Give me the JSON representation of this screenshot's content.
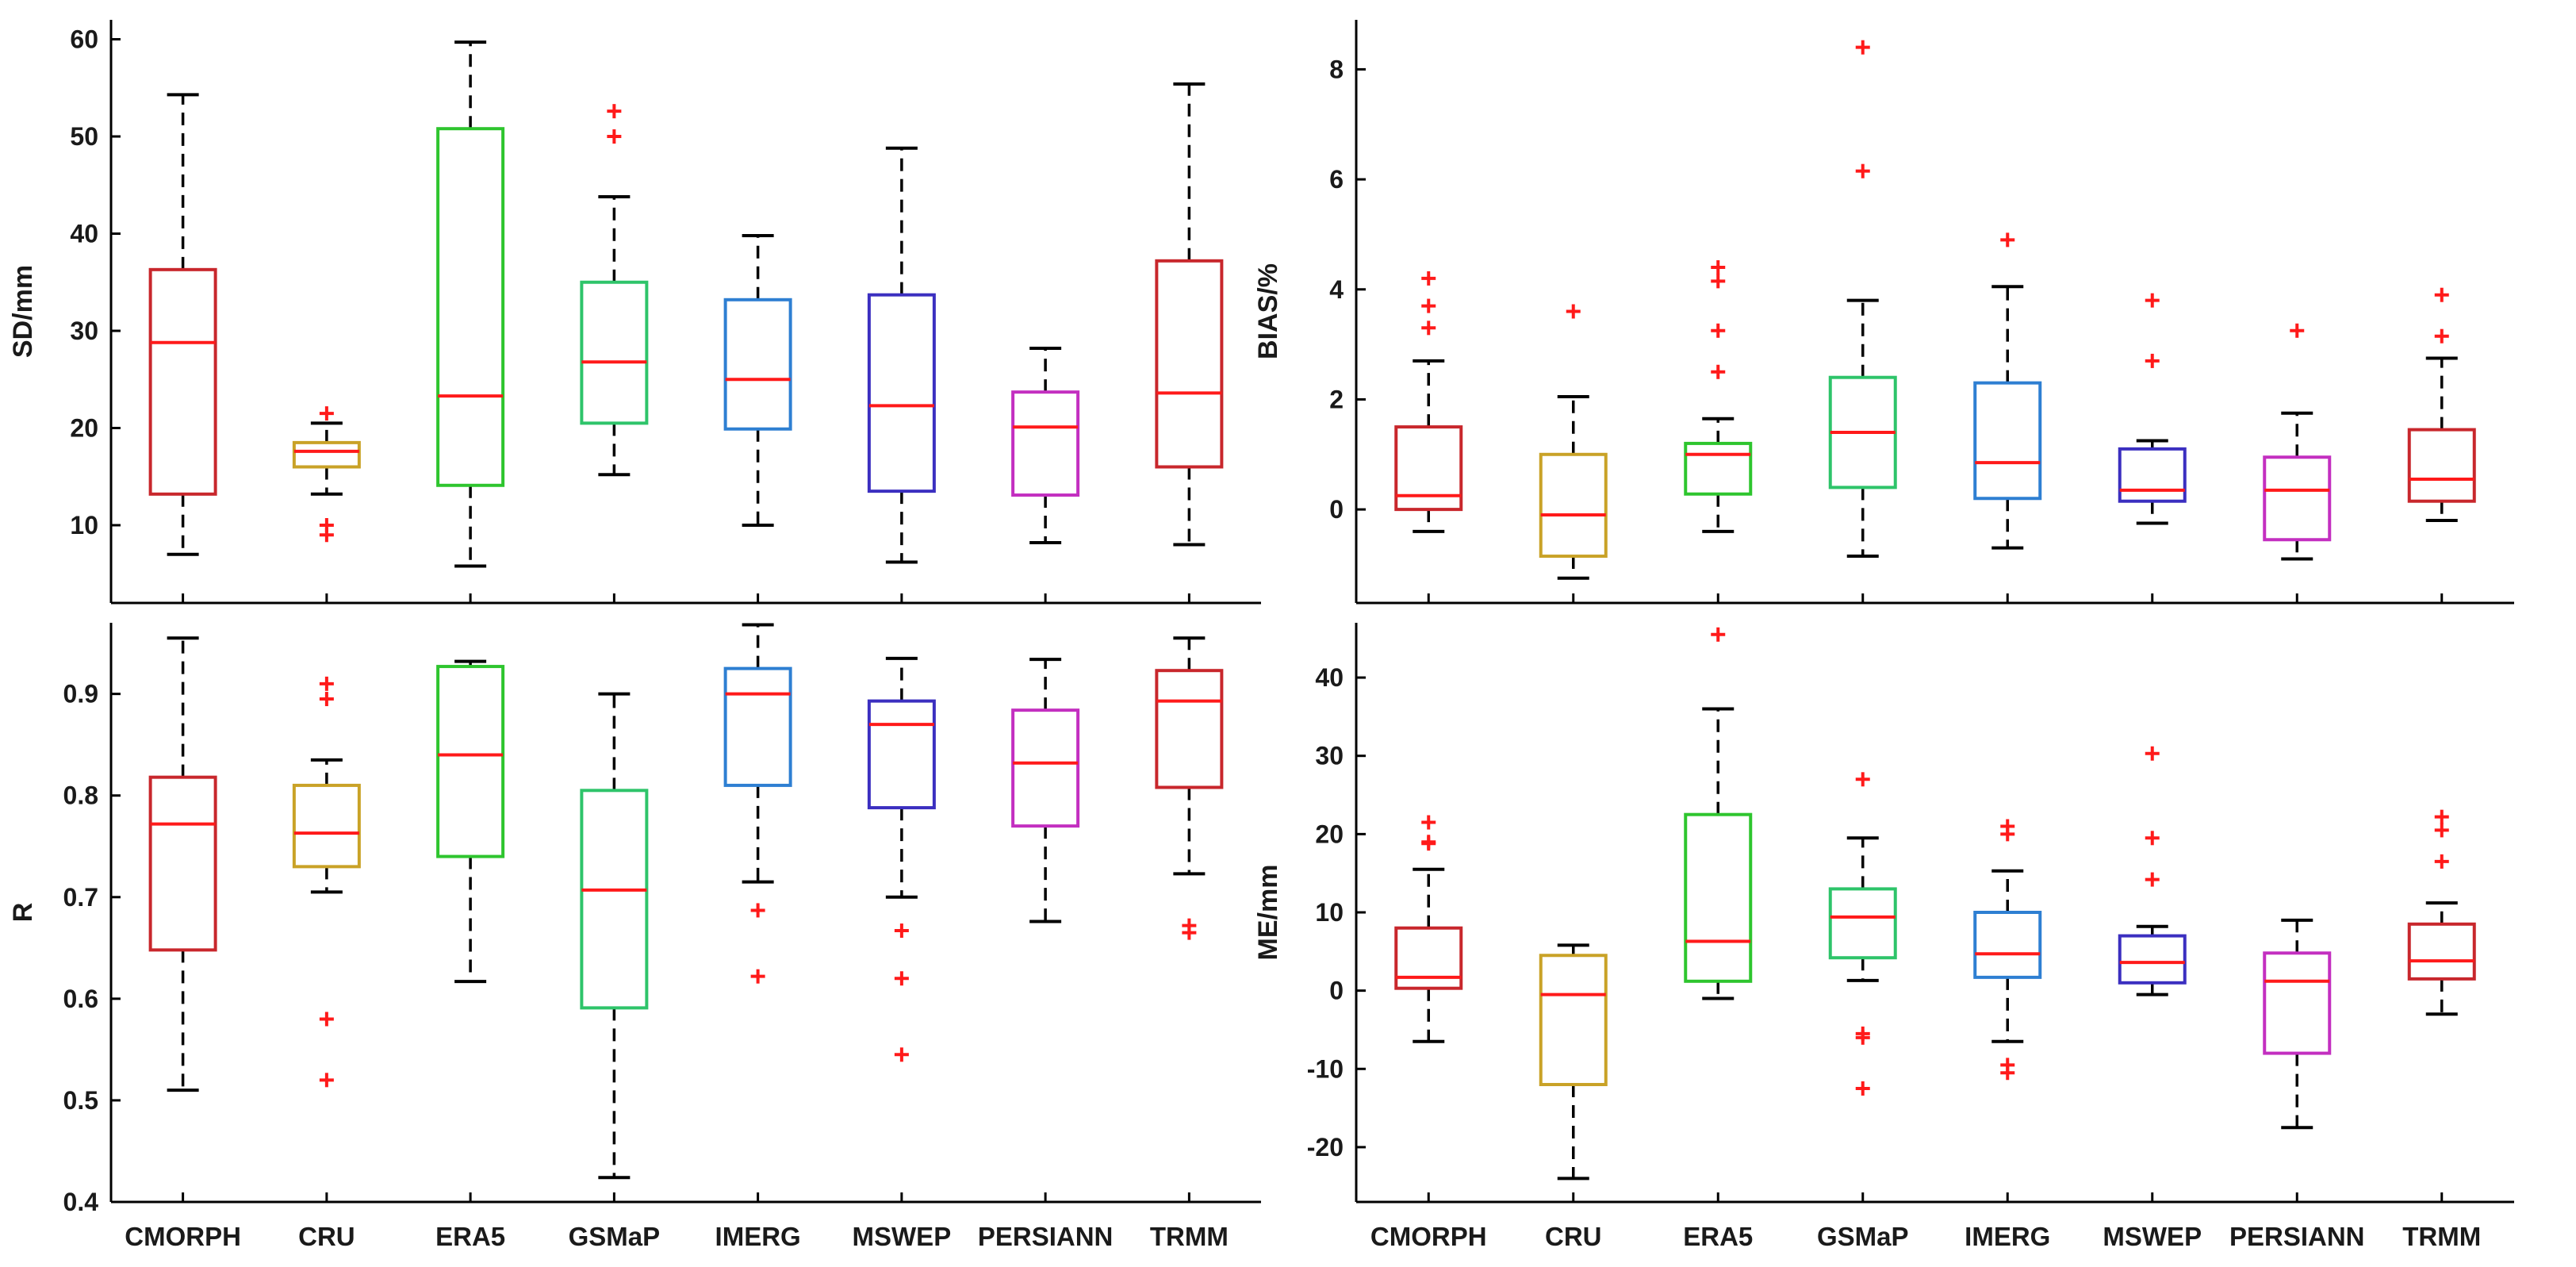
{
  "chart_data": [
    {
      "type": "boxplot",
      "panel": "top-left",
      "ylabel": "SD/mm",
      "ylim": [
        2,
        62
      ],
      "yticks": [
        10,
        20,
        30,
        40,
        50,
        60
      ],
      "categories": [
        "CMORPH",
        "CRU",
        "ERA5",
        "GSMaP",
        "IMERG",
        "MSWEP",
        "PERSIANN",
        "TRMM"
      ],
      "show_xlabels": false,
      "boxes": [
        {
          "name": "CMORPH",
          "color": "#c8272c",
          "whisker_low": 7,
          "q1": 13.2,
          "median": 28.8,
          "q3": 36.3,
          "whisker_high": 54.3,
          "outliers": []
        },
        {
          "name": "CRU",
          "color": "#c9a227",
          "whisker_low": 13.2,
          "q1": 16,
          "median": 17.6,
          "q3": 18.5,
          "whisker_high": 20.5,
          "outliers": [
            21.5,
            10,
            9
          ]
        },
        {
          "name": "ERA5",
          "color": "#2ec52e",
          "whisker_low": 5.8,
          "q1": 14.1,
          "median": 23.3,
          "q3": 50.8,
          "whisker_high": 59.7,
          "outliers": []
        },
        {
          "name": "GSMaP",
          "color": "#2ec46a",
          "whisker_low": 15.2,
          "q1": 20.5,
          "median": 26.8,
          "q3": 35,
          "whisker_high": 43.8,
          "outliers": [
            52.6,
            50
          ]
        },
        {
          "name": "IMERG",
          "color": "#2e7fd2",
          "whisker_low": 10,
          "q1": 19.9,
          "median": 25,
          "q3": 33.2,
          "whisker_high": 39.8,
          "outliers": []
        },
        {
          "name": "MSWEP",
          "color": "#3b2fc0",
          "whisker_low": 6.2,
          "q1": 13.5,
          "median": 22.3,
          "q3": 33.7,
          "whisker_high": 48.8,
          "outliers": []
        },
        {
          "name": "PERSIANN",
          "color": "#c32fc0",
          "whisker_low": 8.2,
          "q1": 13.1,
          "median": 20.1,
          "q3": 23.7,
          "whisker_high": 28.2,
          "outliers": []
        },
        {
          "name": "TRMM",
          "color": "#c8272c",
          "whisker_low": 8,
          "q1": 16,
          "median": 23.6,
          "q3": 37.2,
          "whisker_high": 55.4,
          "outliers": []
        }
      ]
    },
    {
      "type": "boxplot",
      "panel": "top-right",
      "ylabel": "BIAS/%",
      "ylim": [
        -1.7,
        8.9
      ],
      "yticks": [
        0,
        2,
        4,
        6,
        8
      ],
      "categories": [
        "CMORPH",
        "CRU",
        "ERA5",
        "GSMaP",
        "IMERG",
        "MSWEP",
        "PERSIANN",
        "TRMM"
      ],
      "show_xlabels": false,
      "boxes": [
        {
          "name": "CMORPH",
          "color": "#c8272c",
          "whisker_low": -0.4,
          "q1": 0,
          "median": 0.25,
          "q3": 1.5,
          "whisker_high": 2.7,
          "outliers": [
            4.2,
            3.7,
            3.3
          ]
        },
        {
          "name": "CRU",
          "color": "#c9a227",
          "whisker_low": -1.25,
          "q1": -0.85,
          "median": -0.1,
          "q3": 1,
          "whisker_high": 2.05,
          "outliers": [
            3.6
          ]
        },
        {
          "name": "ERA5",
          "color": "#2ec52e",
          "whisker_low": -0.4,
          "q1": 0.28,
          "median": 1,
          "q3": 1.2,
          "whisker_high": 1.65,
          "outliers": [
            4.4,
            4.15,
            3.25,
            2.5
          ]
        },
        {
          "name": "GSMaP",
          "color": "#2ec46a",
          "whisker_low": -0.85,
          "q1": 0.4,
          "median": 1.4,
          "q3": 2.4,
          "whisker_high": 3.8,
          "outliers": [
            8.4,
            6.15
          ]
        },
        {
          "name": "IMERG",
          "color": "#2e7fd2",
          "whisker_low": -0.7,
          "q1": 0.2,
          "median": 0.85,
          "q3": 2.3,
          "whisker_high": 4.05,
          "outliers": [
            4.9
          ]
        },
        {
          "name": "MSWEP",
          "color": "#3b2fc0",
          "whisker_low": -0.25,
          "q1": 0.15,
          "median": 0.35,
          "q3": 1.1,
          "whisker_high": 1.25,
          "outliers": [
            3.8,
            2.7
          ]
        },
        {
          "name": "PERSIANN",
          "color": "#c32fc0",
          "whisker_low": -0.9,
          "q1": -0.55,
          "median": 0.35,
          "q3": 0.95,
          "whisker_high": 1.75,
          "outliers": [
            3.25
          ]
        },
        {
          "name": "TRMM",
          "color": "#c8272c",
          "whisker_low": -0.2,
          "q1": 0.15,
          "median": 0.55,
          "q3": 1.45,
          "whisker_high": 2.75,
          "outliers": [
            3.9,
            3.15
          ]
        }
      ]
    },
    {
      "type": "boxplot",
      "panel": "bottom-left",
      "ylabel": "R",
      "ylim": [
        0.4,
        0.97
      ],
      "yticks": [
        0.4,
        0.5,
        0.6,
        0.7,
        0.8,
        0.9
      ],
      "categories": [
        "CMORPH",
        "CRU",
        "ERA5",
        "GSMaP",
        "IMERG",
        "MSWEP",
        "PERSIANN",
        "TRMM"
      ],
      "show_xlabels": true,
      "boxes": [
        {
          "name": "CMORPH",
          "color": "#c8272c",
          "whisker_low": 0.51,
          "q1": 0.648,
          "median": 0.772,
          "q3": 0.818,
          "whisker_high": 0.955,
          "outliers": []
        },
        {
          "name": "CRU",
          "color": "#c9a227",
          "whisker_low": 0.705,
          "q1": 0.73,
          "median": 0.763,
          "q3": 0.81,
          "whisker_high": 0.835,
          "outliers": [
            0.91,
            0.895,
            0.58,
            0.52
          ]
        },
        {
          "name": "ERA5",
          "color": "#2ec52e",
          "whisker_low": 0.617,
          "q1": 0.74,
          "median": 0.84,
          "q3": 0.927,
          "whisker_high": 0.932,
          "outliers": []
        },
        {
          "name": "GSMaP",
          "color": "#2ec46a",
          "whisker_low": 0.424,
          "q1": 0.591,
          "median": 0.707,
          "q3": 0.805,
          "whisker_high": 0.9,
          "outliers": []
        },
        {
          "name": "IMERG",
          "color": "#2e7fd2",
          "whisker_low": 0.715,
          "q1": 0.81,
          "median": 0.9,
          "q3": 0.925,
          "whisker_high": 0.968,
          "outliers": [
            0.687,
            0.622
          ]
        },
        {
          "name": "MSWEP",
          "color": "#3b2fc0",
          "whisker_low": 0.7,
          "q1": 0.788,
          "median": 0.87,
          "q3": 0.893,
          "whisker_high": 0.935,
          "outliers": [
            0.667,
            0.62,
            0.545
          ]
        },
        {
          "name": "PERSIANN",
          "color": "#c32fc0",
          "whisker_low": 0.676,
          "q1": 0.77,
          "median": 0.832,
          "q3": 0.884,
          "whisker_high": 0.934,
          "outliers": []
        },
        {
          "name": "TRMM",
          "color": "#c8272c",
          "whisker_low": 0.723,
          "q1": 0.808,
          "median": 0.893,
          "q3": 0.923,
          "whisker_high": 0.955,
          "outliers": [
            0.672,
            0.665
          ]
        }
      ]
    },
    {
      "type": "boxplot",
      "panel": "bottom-right",
      "ylabel": "ME/mm",
      "ylim": [
        -27,
        47
      ],
      "yticks": [
        -20,
        -10,
        0,
        10,
        20,
        30,
        40
      ],
      "categories": [
        "CMORPH",
        "CRU",
        "ERA5",
        "GSMaP",
        "IMERG",
        "MSWEP",
        "PERSIANN",
        "TRMM"
      ],
      "show_xlabels": true,
      "boxes": [
        {
          "name": "CMORPH",
          "color": "#c8272c",
          "whisker_low": -6.5,
          "q1": 0.3,
          "median": 1.7,
          "q3": 8,
          "whisker_high": 15.5,
          "outliers": [
            21.5,
            19,
            18.8
          ]
        },
        {
          "name": "CRU",
          "color": "#c9a227",
          "whisker_low": -24,
          "q1": -12,
          "median": -0.5,
          "q3": 4.5,
          "whisker_high": 5.8,
          "outliers": []
        },
        {
          "name": "ERA5",
          "color": "#2ec52e",
          "whisker_low": -1,
          "q1": 1.2,
          "median": 6.3,
          "q3": 22.5,
          "whisker_high": 36,
          "outliers": [
            45.5
          ]
        },
        {
          "name": "GSMaP",
          "color": "#2ec46a",
          "whisker_low": 1.3,
          "q1": 4.2,
          "median": 9.4,
          "q3": 13,
          "whisker_high": 19.5,
          "outliers": [
            27,
            -5.5,
            -6,
            -12.5
          ]
        },
        {
          "name": "IMERG",
          "color": "#2e7fd2",
          "whisker_low": -6.5,
          "q1": 1.7,
          "median": 4.7,
          "q3": 10,
          "whisker_high": 15.3,
          "outliers": [
            21,
            20,
            -9.5,
            -10.5
          ]
        },
        {
          "name": "MSWEP",
          "color": "#3b2fc0",
          "whisker_low": -0.5,
          "q1": 1,
          "median": 3.6,
          "q3": 7,
          "whisker_high": 8.2,
          "outliers": [
            30.3,
            19.5,
            14.2
          ]
        },
        {
          "name": "PERSIANN",
          "color": "#c32fc0",
          "whisker_low": -17.5,
          "q1": -8,
          "median": 1.2,
          "q3": 4.8,
          "whisker_high": 9,
          "outliers": []
        },
        {
          "name": "TRMM",
          "color": "#c8272c",
          "whisker_low": -3,
          "q1": 1.5,
          "median": 3.8,
          "q3": 8.5,
          "whisker_high": 11.2,
          "outliers": [
            22.2,
            20.5,
            16.5
          ]
        }
      ]
    }
  ]
}
